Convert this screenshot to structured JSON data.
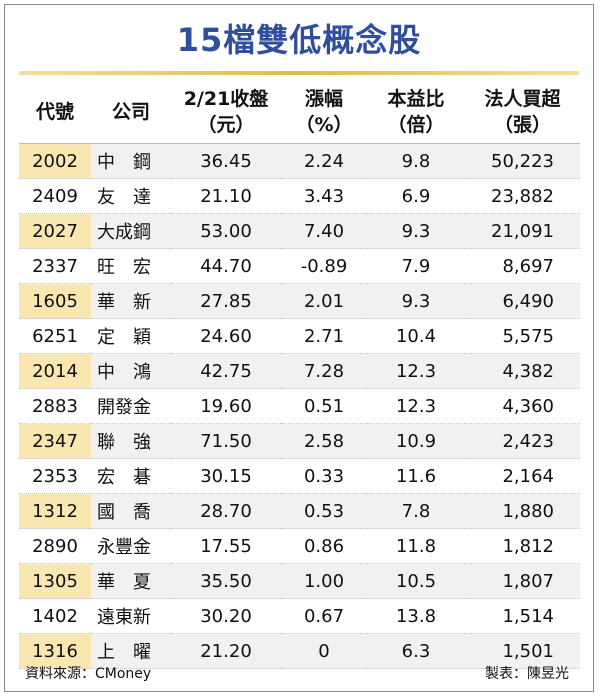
{
  "title": "15檔雙低概念股",
  "headers": [
    {
      "l1": "代號",
      "l2": ""
    },
    {
      "l1": "公司",
      "l2": ""
    },
    {
      "l1": "2/21收盤",
      "l2": "（元）"
    },
    {
      "l1": "漲幅",
      "l2": "（%）"
    },
    {
      "l1": "本益比",
      "l2": "（倍）"
    },
    {
      "l1": "法人買超",
      "l2": "（張）"
    }
  ],
  "rows": [
    {
      "code": "2002",
      "name": "中　鋼",
      "close": "36.45",
      "change": "2.24",
      "pe": "9.8",
      "net_buy": "50,223"
    },
    {
      "code": "2409",
      "name": "友　達",
      "close": "21.10",
      "change": "3.43",
      "pe": "6.9",
      "net_buy": "23,882"
    },
    {
      "code": "2027",
      "name": "大成鋼",
      "close": "53.00",
      "change": "7.40",
      "pe": "9.3",
      "net_buy": "21,091"
    },
    {
      "code": "2337",
      "name": "旺　宏",
      "close": "44.70",
      "change": "-0.89",
      "pe": "7.9",
      "net_buy": "8,697"
    },
    {
      "code": "1605",
      "name": "華　新",
      "close": "27.85",
      "change": "2.01",
      "pe": "9.3",
      "net_buy": "6,490"
    },
    {
      "code": "6251",
      "name": "定　穎",
      "close": "24.60",
      "change": "2.71",
      "pe": "10.4",
      "net_buy": "5,575"
    },
    {
      "code": "2014",
      "name": "中　鴻",
      "close": "42.75",
      "change": "7.28",
      "pe": "12.3",
      "net_buy": "4,382"
    },
    {
      "code": "2883",
      "name": "開發金",
      "close": "19.60",
      "change": "0.51",
      "pe": "12.3",
      "net_buy": "4,360"
    },
    {
      "code": "2347",
      "name": "聯　強",
      "close": "71.50",
      "change": "2.58",
      "pe": "10.9",
      "net_buy": "2,423"
    },
    {
      "code": "2353",
      "name": "宏　碁",
      "close": "30.15",
      "change": "0.33",
      "pe": "11.6",
      "net_buy": "2,164"
    },
    {
      "code": "1312",
      "name": "國　喬",
      "close": "28.70",
      "change": "0.53",
      "pe": "7.8",
      "net_buy": "1,880"
    },
    {
      "code": "2890",
      "name": "永豐金",
      "close": "17.55",
      "change": "0.86",
      "pe": "11.8",
      "net_buy": "1,812"
    },
    {
      "code": "1305",
      "name": "華　夏",
      "close": "35.50",
      "change": "1.00",
      "pe": "10.5",
      "net_buy": "1,807"
    },
    {
      "code": "1402",
      "name": "遠東新",
      "close": "30.20",
      "change": "0.67",
      "pe": "13.8",
      "net_buy": "1,514"
    },
    {
      "code": "1316",
      "name": "上　曜",
      "close": "21.20",
      "change": "0",
      "pe": "6.3",
      "net_buy": "1,501"
    }
  ],
  "footer": {
    "source": "資料來源：CMoney",
    "credit": "製表：陳昱光"
  },
  "colors": {
    "title": "#2f4f9e",
    "rule": "#e2b94c",
    "code_highlight": "#f8e7b0",
    "row_alt": "#f1f1f1"
  }
}
